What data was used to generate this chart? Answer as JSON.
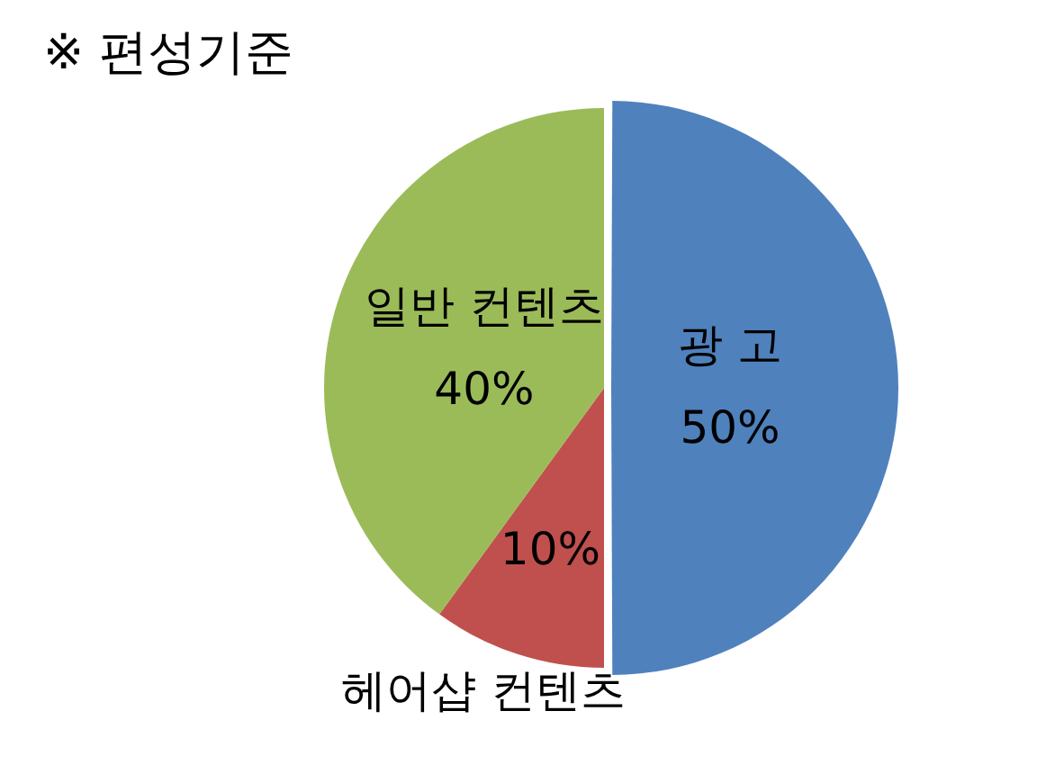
{
  "chart_data": {
    "type": "pie",
    "title": "※ 편성기준",
    "categories": [
      "광 고",
      "헤어샵 컨텐츠",
      "일반 컨텐츠"
    ],
    "values": [
      50,
      10,
      40
    ],
    "colors": [
      "#4f81bd",
      "#c0504d",
      "#9bbb59"
    ],
    "value_labels": [
      "50%",
      "10%",
      "40%"
    ],
    "legend": false
  }
}
